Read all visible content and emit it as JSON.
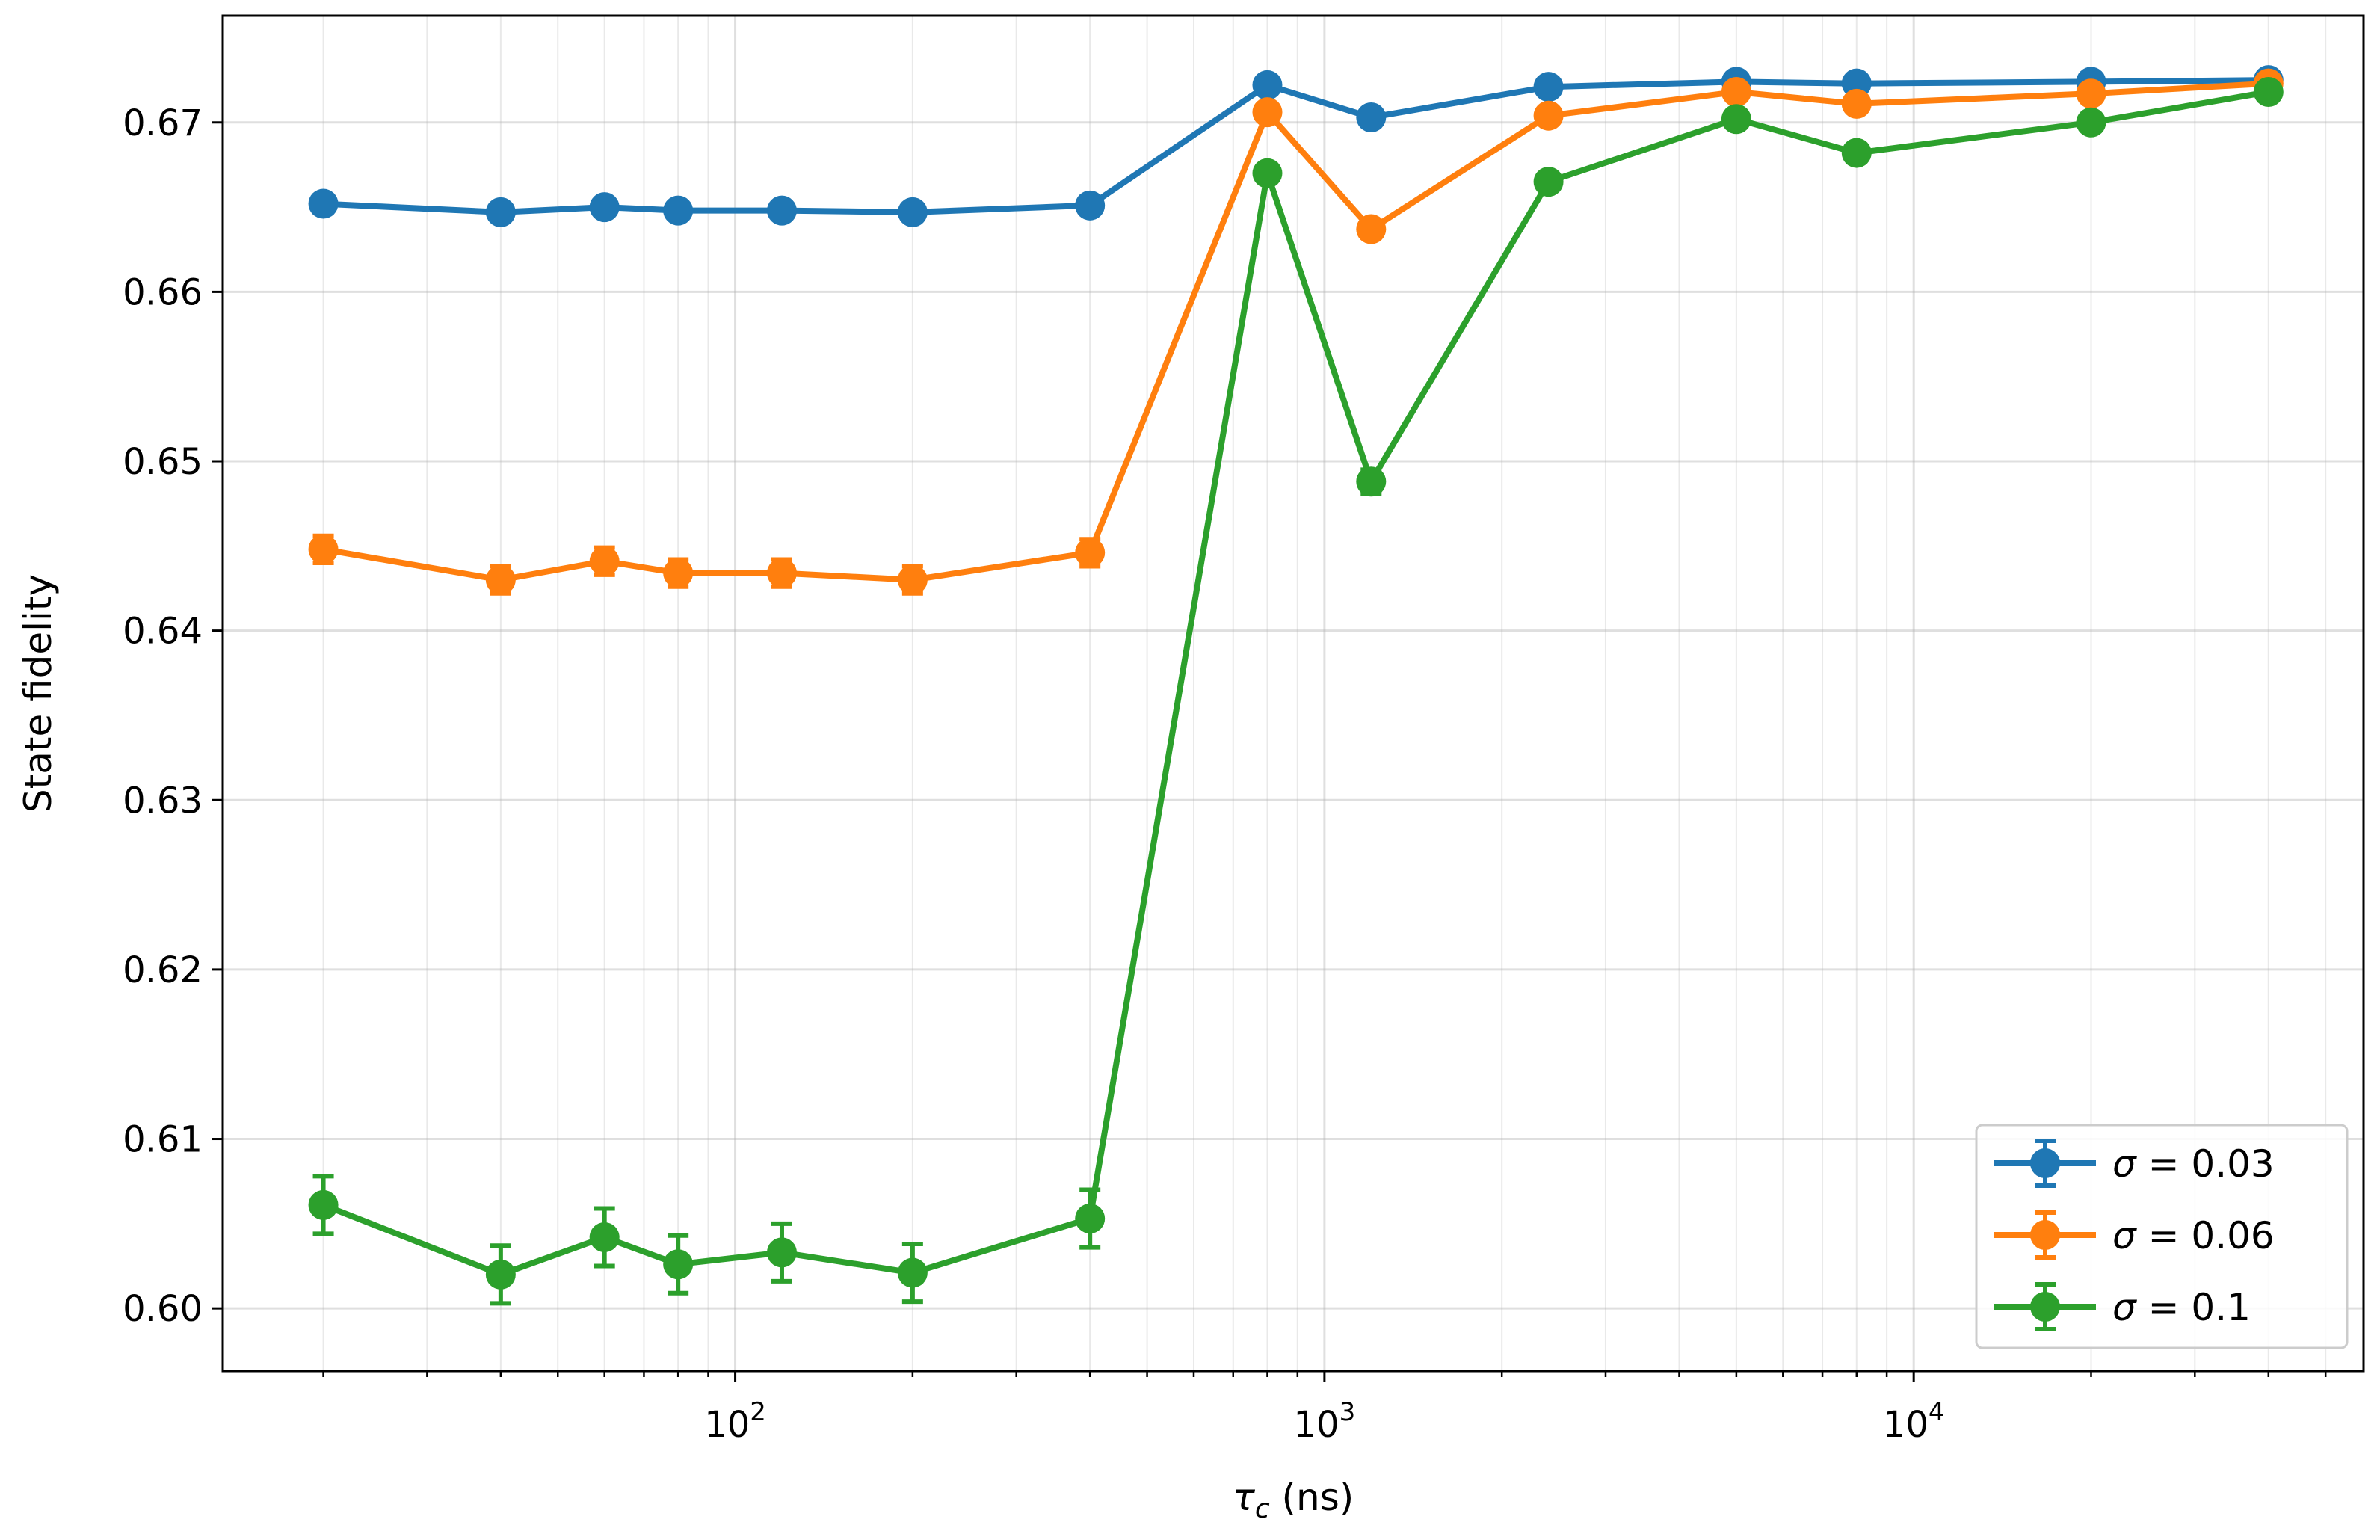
{
  "chart_data": {
    "type": "line",
    "xlabel_prefix": "τ",
    "xlabel_sub": "c",
    "xlabel_suffix": " (ns)",
    "ylabel": "State fidelity",
    "xscale": "log",
    "xlim": [
      13.5,
      58000
    ],
    "ylim": [
      0.5963,
      0.6763
    ],
    "grid": true,
    "legend_position": "lower-right",
    "x_ticks": [
      {
        "value": 100,
        "base": "10",
        "exp": "2"
      },
      {
        "value": 1000,
        "base": "10",
        "exp": "3"
      },
      {
        "value": 10000,
        "base": "10",
        "exp": "4"
      }
    ],
    "y_ticks": [
      {
        "value": 0.6,
        "label": "0.60"
      },
      {
        "value": 0.61,
        "label": "0.61"
      },
      {
        "value": 0.62,
        "label": "0.62"
      },
      {
        "value": 0.63,
        "label": "0.63"
      },
      {
        "value": 0.64,
        "label": "0.64"
      },
      {
        "value": 0.65,
        "label": "0.65"
      },
      {
        "value": 0.66,
        "label": "0.66"
      },
      {
        "value": 0.67,
        "label": "0.67"
      }
    ],
    "x": [
      20,
      40,
      60,
      80,
      120,
      200,
      400,
      800,
      1200,
      2400,
      5000,
      8000,
      20000,
      40000
    ],
    "series": [
      {
        "name": "σ = 0.03",
        "sym": "σ",
        "value_label": "0.03",
        "color": "#1f77b4",
        "values": [
          0.6652,
          0.6647,
          0.665,
          0.6648,
          0.6648,
          0.6647,
          0.6651,
          0.6722,
          0.6703,
          0.6721,
          0.6724,
          0.6723,
          0.6724,
          0.6725
        ],
        "errors": [
          0.0002,
          0.0002,
          0.0002,
          0.0002,
          0.0002,
          0.0002,
          0.0002,
          0.0002,
          0.0002,
          0.0002,
          0.0002,
          0.0002,
          0.0002,
          0.0002
        ]
      },
      {
        "name": "σ = 0.06",
        "sym": "σ",
        "value_label": "0.06",
        "color": "#ff7f0e",
        "values": [
          0.6448,
          0.643,
          0.6441,
          0.6434,
          0.6434,
          0.643,
          0.6446,
          0.6706,
          0.6637,
          0.6704,
          0.6718,
          0.6711,
          0.6717,
          0.6723
        ],
        "errors": [
          0.0008,
          0.0008,
          0.0008,
          0.0008,
          0.0008,
          0.0008,
          0.0008,
          0.0004,
          0.0004,
          0.0003,
          0.0003,
          0.0003,
          0.0003,
          0.0003
        ]
      },
      {
        "name": "σ = 0.1",
        "sym": "σ",
        "value_label": "0.1",
        "color": "#2ca02c",
        "values": [
          0.6061,
          0.602,
          0.6042,
          0.6026,
          0.6033,
          0.6021,
          0.6053,
          0.667,
          0.6488,
          0.6665,
          0.6702,
          0.6682,
          0.67,
          0.6718
        ],
        "errors": [
          0.0017,
          0.0017,
          0.0017,
          0.0017,
          0.0017,
          0.0017,
          0.0017,
          0.0005,
          0.0007,
          0.0004,
          0.0003,
          0.0003,
          0.0003,
          0.0003
        ]
      }
    ]
  }
}
